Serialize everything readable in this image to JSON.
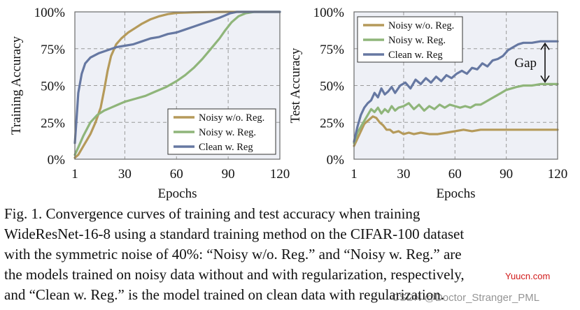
{
  "chart_data": [
    {
      "type": "line",
      "panel": "left",
      "xlabel": "Epochs",
      "ylabel": "Training Accuracy",
      "xlim": [
        1,
        120
      ],
      "ylim": [
        0,
        100
      ],
      "xticks": [
        "1",
        "30",
        "60",
        "90",
        "120"
      ],
      "xtick_values": [
        1,
        30,
        60,
        90,
        120
      ],
      "yticks": [
        "0%",
        "25%",
        "50%",
        "75%",
        "100%"
      ],
      "ytick_values": [
        0,
        25,
        50,
        75,
        100
      ],
      "grid": true,
      "background": "#eef0f6",
      "legend_position": "bottom-right",
      "series": [
        {
          "name": "Noisy w/o. Reg.",
          "color": "#b59a5a",
          "points": [
            [
              1,
              1
            ],
            [
              3,
              3
            ],
            [
              6,
              9
            ],
            [
              10,
              17
            ],
            [
              13,
              25
            ],
            [
              16,
              35
            ],
            [
              18,
              47
            ],
            [
              20,
              60
            ],
            [
              22,
              70
            ],
            [
              25,
              78
            ],
            [
              28,
              82
            ],
            [
              32,
              86
            ],
            [
              36,
              89
            ],
            [
              40,
              92
            ],
            [
              45,
              95
            ],
            [
              50,
              97
            ],
            [
              55,
              98.5
            ],
            [
              60,
              99.3
            ],
            [
              70,
              99.7
            ],
            [
              80,
              99.9
            ],
            [
              90,
              100
            ],
            [
              100,
              100
            ],
            [
              120,
              100
            ]
          ]
        },
        {
          "name": "Noisy w. Reg.",
          "color": "#8fb57a",
          "points": [
            [
              1,
              3
            ],
            [
              3,
              8
            ],
            [
              6,
              16
            ],
            [
              10,
              25
            ],
            [
              14,
              30
            ],
            [
              18,
              33
            ],
            [
              22,
              35
            ],
            [
              26,
              37
            ],
            [
              30,
              39
            ],
            [
              36,
              41
            ],
            [
              42,
              43
            ],
            [
              48,
              46
            ],
            [
              54,
              49
            ],
            [
              60,
              53
            ],
            [
              65,
              57
            ],
            [
              70,
              62
            ],
            [
              75,
              68
            ],
            [
              80,
              75
            ],
            [
              85,
              82
            ],
            [
              88,
              87
            ],
            [
              92,
              93
            ],
            [
              96,
              97
            ],
            [
              100,
              99
            ],
            [
              105,
              100
            ],
            [
              120,
              100
            ]
          ]
        },
        {
          "name": "Clean w. Reg",
          "color": "#6678a2",
          "points": [
            [
              1,
              11
            ],
            [
              2,
              28
            ],
            [
              3,
              45
            ],
            [
              5,
              58
            ],
            [
              7,
              65
            ],
            [
              10,
              69
            ],
            [
              15,
              72
            ],
            [
              20,
              74
            ],
            [
              25,
              76
            ],
            [
              30,
              77
            ],
            [
              35,
              78
            ],
            [
              40,
              80
            ],
            [
              45,
              82
            ],
            [
              50,
              83
            ],
            [
              55,
              85
            ],
            [
              60,
              86
            ],
            [
              65,
              88
            ],
            [
              70,
              90
            ],
            [
              75,
              92
            ],
            [
              80,
              94
            ],
            [
              85,
              96
            ],
            [
              88,
              97.5
            ],
            [
              91,
              99
            ],
            [
              95,
              100
            ],
            [
              120,
              100
            ]
          ]
        }
      ]
    },
    {
      "type": "line",
      "panel": "right",
      "xlabel": "Epochs",
      "ylabel": "Test Accuracy",
      "xlim": [
        1,
        120
      ],
      "ylim": [
        0,
        100
      ],
      "xticks": [
        "1",
        "30",
        "60",
        "90",
        "120"
      ],
      "xtick_values": [
        1,
        30,
        60,
        90,
        120
      ],
      "yticks": [
        "0%",
        "25%",
        "50%",
        "75%",
        "100%"
      ],
      "ytick_values": [
        0,
        25,
        50,
        75,
        100
      ],
      "grid": true,
      "background": "#eef0f6",
      "legend_position": "top-left",
      "annotation": {
        "text": "Gap",
        "x": 120,
        "y_from": 80,
        "y_to": 51
      },
      "series": [
        {
          "name": "Noisy w/o. Reg.",
          "color": "#b59a5a",
          "points": [
            [
              1,
              9
            ],
            [
              3,
              14
            ],
            [
              5,
              19
            ],
            [
              7,
              24
            ],
            [
              9,
              26
            ],
            [
              11,
              28
            ],
            [
              12,
              29
            ],
            [
              14,
              28
            ],
            [
              16,
              25
            ],
            [
              18,
              23
            ],
            [
              20,
              20
            ],
            [
              22,
              20
            ],
            [
              24,
              18
            ],
            [
              27,
              19
            ],
            [
              30,
              17
            ],
            [
              33,
              18
            ],
            [
              36,
              17
            ],
            [
              40,
              18
            ],
            [
              45,
              17
            ],
            [
              50,
              17
            ],
            [
              55,
              18
            ],
            [
              60,
              19
            ],
            [
              65,
              20
            ],
            [
              70,
              19
            ],
            [
              75,
              20
            ],
            [
              80,
              20
            ],
            [
              90,
              20
            ],
            [
              100,
              20
            ],
            [
              110,
              20
            ],
            [
              120,
              20
            ]
          ]
        },
        {
          "name": "Noisy w. Reg.",
          "color": "#8fb57a",
          "points": [
            [
              1,
              11
            ],
            [
              3,
              18
            ],
            [
              5,
              22
            ],
            [
              7,
              26
            ],
            [
              9,
              30
            ],
            [
              11,
              34
            ],
            [
              13,
              32
            ],
            [
              15,
              35
            ],
            [
              17,
              31
            ],
            [
              19,
              34
            ],
            [
              21,
              32
            ],
            [
              23,
              36
            ],
            [
              25,
              33
            ],
            [
              27,
              35
            ],
            [
              30,
              36
            ],
            [
              33,
              38
            ],
            [
              36,
              34
            ],
            [
              39,
              37
            ],
            [
              42,
              33
            ],
            [
              45,
              36
            ],
            [
              48,
              34
            ],
            [
              51,
              37
            ],
            [
              54,
              35
            ],
            [
              57,
              37
            ],
            [
              60,
              36
            ],
            [
              63,
              35
            ],
            [
              66,
              36
            ],
            [
              69,
              35
            ],
            [
              72,
              37
            ],
            [
              75,
              37
            ],
            [
              78,
              39
            ],
            [
              81,
              41
            ],
            [
              84,
              43
            ],
            [
              87,
              45
            ],
            [
              90,
              47
            ],
            [
              93,
              48
            ],
            [
              96,
              49
            ],
            [
              100,
              50
            ],
            [
              105,
              50
            ],
            [
              110,
              51
            ],
            [
              115,
              51
            ],
            [
              120,
              51
            ]
          ]
        },
        {
          "name": "Clean w. Reg",
          "color": "#6678a2",
          "points": [
            [
              1,
              12
            ],
            [
              3,
              22
            ],
            [
              5,
              30
            ],
            [
              7,
              35
            ],
            [
              9,
              38
            ],
            [
              11,
              40
            ],
            [
              13,
              45
            ],
            [
              15,
              42
            ],
            [
              17,
              48
            ],
            [
              19,
              44
            ],
            [
              21,
              46
            ],
            [
              23,
              49
            ],
            [
              25,
              45
            ],
            [
              28,
              50
            ],
            [
              31,
              52
            ],
            [
              34,
              48
            ],
            [
              37,
              54
            ],
            [
              40,
              51
            ],
            [
              43,
              55
            ],
            [
              46,
              52
            ],
            [
              49,
              56
            ],
            [
              52,
              53
            ],
            [
              55,
              57
            ],
            [
              58,
              55
            ],
            [
              61,
              58
            ],
            [
              64,
              60
            ],
            [
              67,
              58
            ],
            [
              70,
              62
            ],
            [
              73,
              61
            ],
            [
              76,
              65
            ],
            [
              79,
              63
            ],
            [
              82,
              67
            ],
            [
              85,
              68
            ],
            [
              88,
              70
            ],
            [
              91,
              74
            ],
            [
              94,
              76
            ],
            [
              97,
              78
            ],
            [
              100,
              79
            ],
            [
              105,
              79
            ],
            [
              110,
              80
            ],
            [
              115,
              80
            ],
            [
              120,
              80
            ]
          ]
        }
      ]
    }
  ],
  "caption": {
    "lines": [
      "Fig. 1.   Convergence curves of training and test accuracy when training",
      "WideResNet-16-8 using a standard training method on the CIFAR-100 dataset",
      "with the symmetric noise of 40%: “Noisy w/o. Reg.” and “Noisy w. Reg.” are",
      "the models trained on noisy data without and with regularization, respectively,",
      "and “Clean w. Reg.” is the model trained on clean data with regularization."
    ]
  },
  "watermarks": {
    "site": "Yuucn.com",
    "credit": "CSDN @Doctor_Stranger_PML"
  }
}
